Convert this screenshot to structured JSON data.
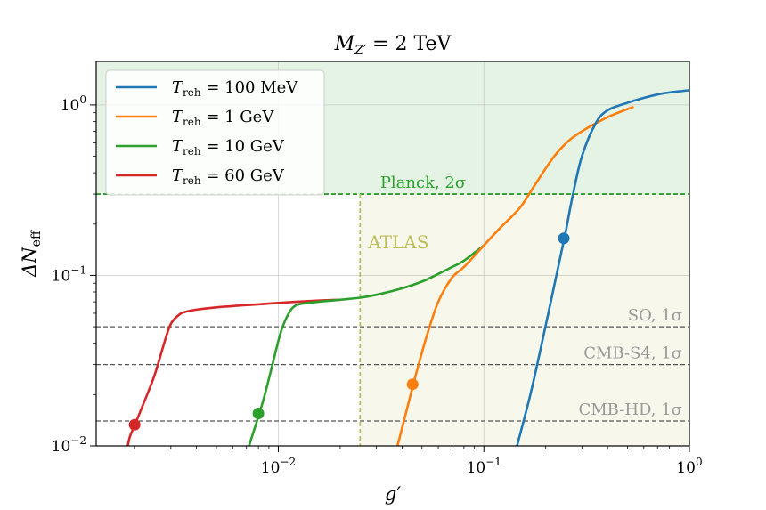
{
  "chart_data": {
    "type": "line",
    "title": {
      "base": "M",
      "sub": "Z′",
      "rest": " = 2 TeV"
    },
    "xlabel": "g′",
    "ylabel": {
      "base": "ΔN",
      "sub": "eff"
    },
    "xscale": "log",
    "yscale": "log",
    "xlim": [
      0.0013,
      1.0
    ],
    "ylim": [
      0.01,
      1.8
    ],
    "x_ticks": [
      {
        "value": 0.01,
        "base": "10",
        "exp": "−2"
      },
      {
        "value": 0.1,
        "base": "10",
        "exp": "−1"
      },
      {
        "value": 1.0,
        "base": "10",
        "exp": "0"
      }
    ],
    "y_ticks": [
      {
        "value": 0.01,
        "base": "10",
        "exp": "−2"
      },
      {
        "value": 0.1,
        "base": "10",
        "exp": "−1"
      },
      {
        "value": 1.0,
        "base": "10",
        "exp": "0"
      }
    ],
    "grid": true,
    "legend_position": "top-left",
    "series": [
      {
        "name": "T_reh = 100 MeV",
        "label_base": "T",
        "label_sub": "reh",
        "label_rest": " = 100 MeV",
        "color": "#1f77b4",
        "x": [
          0.145,
          0.17,
          0.2,
          0.23,
          0.25,
          0.27,
          0.3,
          0.35,
          0.4,
          0.5,
          0.6,
          0.75,
          1.0
        ],
        "y": [
          0.01,
          0.021,
          0.051,
          0.112,
          0.18,
          0.29,
          0.5,
          0.78,
          0.93,
          1.03,
          1.1,
          1.17,
          1.22
        ],
        "marker": {
          "x": 0.245,
          "y": 0.165
        }
      },
      {
        "name": "T_reh = 1 GeV",
        "label_base": "T",
        "label_sub": "reh",
        "label_rest": " = 1 GeV",
        "color": "#ff7f0e",
        "x": [
          0.038,
          0.042,
          0.047,
          0.053,
          0.06,
          0.07,
          0.08,
          0.1,
          0.12,
          0.15,
          0.18,
          0.22,
          0.26,
          0.3,
          0.35,
          0.42,
          0.53
        ],
        "y": [
          0.01,
          0.016,
          0.027,
          0.045,
          0.07,
          0.097,
          0.112,
          0.15,
          0.19,
          0.25,
          0.35,
          0.5,
          0.62,
          0.7,
          0.78,
          0.87,
          0.97
        ],
        "marker": {
          "x": 0.045,
          "y": 0.023
        }
      },
      {
        "name": "T_reh = 10 GeV",
        "label_base": "T",
        "label_sub": "reh",
        "label_rest": " = 10 GeV",
        "color": "#2ca02c",
        "x": [
          0.0072,
          0.0078,
          0.0085,
          0.0093,
          0.0102,
          0.011,
          0.012,
          0.014,
          0.02,
          0.025,
          0.03,
          0.04,
          0.05,
          0.06,
          0.07,
          0.08,
          0.1
        ],
        "y": [
          0.01,
          0.0135,
          0.019,
          0.029,
          0.045,
          0.057,
          0.066,
          0.069,
          0.072,
          0.074,
          0.077,
          0.084,
          0.092,
          0.102,
          0.112,
          0.122,
          0.15
        ],
        "marker": {
          "x": 0.008,
          "y": 0.0155
        }
      },
      {
        "name": "T_reh = 60 GeV",
        "label_base": "T",
        "label_sub": "reh",
        "label_rest": " = 60 GeV",
        "color": "#d62728",
        "x": [
          0.00185,
          0.0019,
          0.002,
          0.0022,
          0.0025,
          0.0028,
          0.003,
          0.0033,
          0.0035,
          0.004,
          0.005,
          0.007,
          0.01,
          0.015,
          0.02
        ],
        "y": [
          0.01,
          0.0114,
          0.0132,
          0.0175,
          0.026,
          0.041,
          0.052,
          0.059,
          0.061,
          0.063,
          0.065,
          0.067,
          0.069,
          0.071,
          0.072
        ],
        "marker": {
          "x": 0.002,
          "y": 0.0133
        }
      }
    ],
    "hlines": [
      {
        "name": "Planck, 2σ",
        "y": 0.3,
        "color": "#2ca02c",
        "fill_above": "#2ca02c",
        "fill_opacity": 0.12
      },
      {
        "name": "SO, 1σ",
        "y": 0.05,
        "color": "#555555"
      },
      {
        "name": "CMB-S4, 1σ",
        "y": 0.03,
        "color": "#555555"
      },
      {
        "name": "CMB-HD, 1σ",
        "y": 0.014,
        "color": "#555555"
      }
    ],
    "vlines": [
      {
        "name": "ATLAS",
        "x": 0.025,
        "color": "#bdbd5a",
        "fill_right": "#bdbd5a",
        "fill_opacity": 0.12
      }
    ]
  }
}
